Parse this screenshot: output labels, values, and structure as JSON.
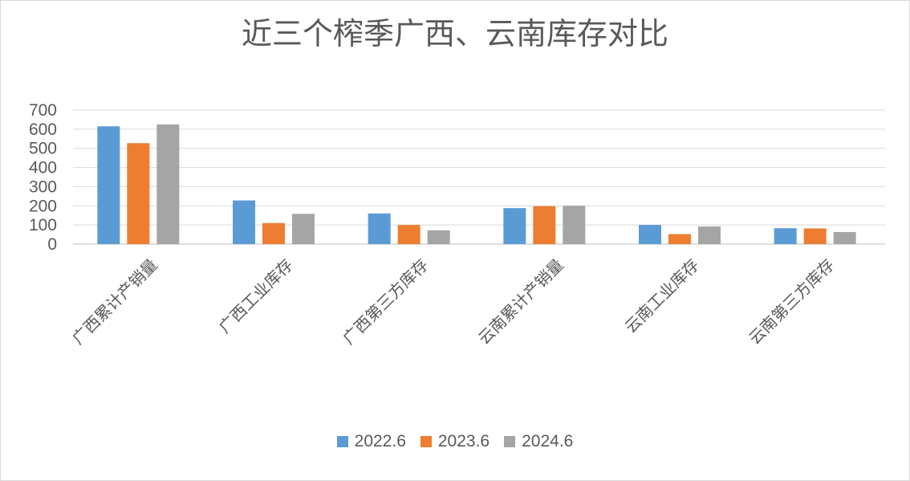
{
  "chart_data": {
    "type": "bar",
    "title": "近三个榨季广西、云南库存对比",
    "categories": [
      "广西累计产销量",
      "广西工业库存",
      "广西第三方库存",
      "云南累计产销量",
      "云南工业库存",
      "云南第三方库存"
    ],
    "series": [
      {
        "name": "2022.6",
        "color": "#5b9bd5",
        "values": [
          615,
          228,
          160,
          188,
          100,
          83
        ]
      },
      {
        "name": "2023.6",
        "color": "#ed7d31",
        "values": [
          527,
          110,
          100,
          198,
          52,
          82
        ]
      },
      {
        "name": "2024.6",
        "color": "#a5a5a5",
        "values": [
          625,
          158,
          72,
          200,
          92,
          63
        ]
      }
    ],
    "yticks": [
      0,
      100,
      200,
      300,
      400,
      500,
      600,
      700
    ],
    "ylim": [
      0,
      700
    ],
    "xlabel": "",
    "ylabel": "",
    "grid": true,
    "legend_position": "bottom"
  }
}
